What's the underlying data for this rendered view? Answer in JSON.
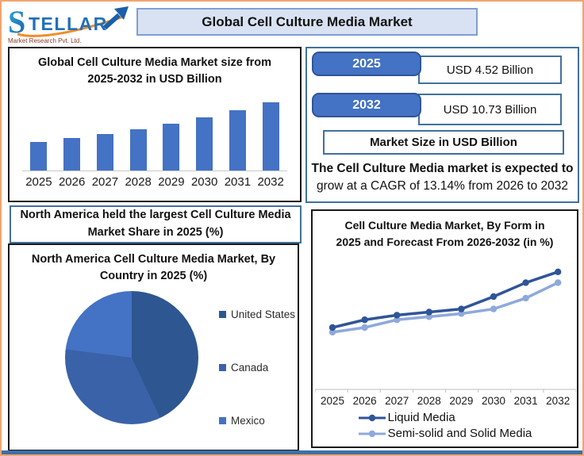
{
  "header": {
    "title": "Global Cell Culture Media Market",
    "logo": {
      "brand": "STELLAR",
      "brand_s": "S",
      "brand_rest": "TELLAR",
      "subtitle": "Market Research Pvt. Ltd."
    }
  },
  "stats_panel": {
    "rows": [
      {
        "year": "2025",
        "value": "USD 4.52 Billion"
      },
      {
        "year": "2032",
        "value": "USD 10.73 Billion"
      }
    ],
    "axis_label": "Market Size in USD Billion",
    "cagr_line1": "The Cell Culture Media market is expected to",
    "cagr_line2": "grow at a CAGR of 13.14% from 2026 to 2032"
  },
  "banner": {
    "line1": "North America held the largest Cell Culture Media",
    "line2": "Market Share in 2025 (%)"
  },
  "chart_data": [
    {
      "id": "market-size-bars",
      "type": "bar",
      "title": "Global Cell Culture Media Market size from 2025-2032 in USD Billion",
      "title_line1": "Global Cell Culture Media Market size from",
      "title_line2": "2025-2032 in USD Billion",
      "categories": [
        "2025",
        "2026",
        "2027",
        "2028",
        "2029",
        "2030",
        "2031",
        "2032"
      ],
      "values": [
        4.52,
        5.11,
        5.79,
        6.55,
        7.41,
        8.38,
        9.48,
        10.73
      ],
      "unit": "USD Billion",
      "bar_color": "#4472C4",
      "ylim": [
        0,
        12
      ],
      "grid": false,
      "note": "2025 and 2032 values labeled on infographic; intermediate years estimated from 13.14% CAGR"
    },
    {
      "id": "na-country-pie",
      "type": "pie",
      "title": "North America Cell Culture Media Market, By Country in 2025 (%)",
      "title_line1": "North America Cell Culture Media Market, By",
      "title_line2": "Country in 2025 (%)",
      "labels": [
        "United States",
        "Canada",
        "Mexico"
      ],
      "values": [
        43,
        34,
        23
      ],
      "colors": [
        "#2E5690",
        "#3A62A8",
        "#4472C4"
      ],
      "legend_position": "right",
      "note": "no data labels shown; slice percentages estimated from angles"
    },
    {
      "id": "form-lines",
      "type": "line",
      "title": "Cell Culture Media Market, By Form in 2025 and Forecast From 2026-2032 (in %)",
      "title_line1": "Cell Culture Media Market, By Form in",
      "title_line2": "2025 and Forecast From 2026-2032 (in %)",
      "x": [
        "2025",
        "2026",
        "2027",
        "2028",
        "2029",
        "2030",
        "2031",
        "2032"
      ],
      "series": [
        {
          "name": "Liquid Media",
          "color": "#2F5597",
          "values": [
            40,
            45,
            48,
            50,
            52,
            60,
            69,
            76
          ]
        },
        {
          "name": "Semi-solid and Solid Media",
          "color": "#8EA9DB",
          "values": [
            37,
            40,
            45,
            47,
            49,
            52,
            59,
            69
          ]
        }
      ],
      "legend_position": "bottom",
      "grid": false,
      "note": "y-axis unlabeled on infographic; values estimated from line positions"
    }
  ],
  "colors": {
    "accent_blue": "#4472C4",
    "dark_blue": "#2F5597",
    "steel_border": "#41719C",
    "title_fill": "#D9E2F2",
    "outer_border_orange": "#F2A470",
    "bottom_bar_blue": "#3E6FA8"
  }
}
